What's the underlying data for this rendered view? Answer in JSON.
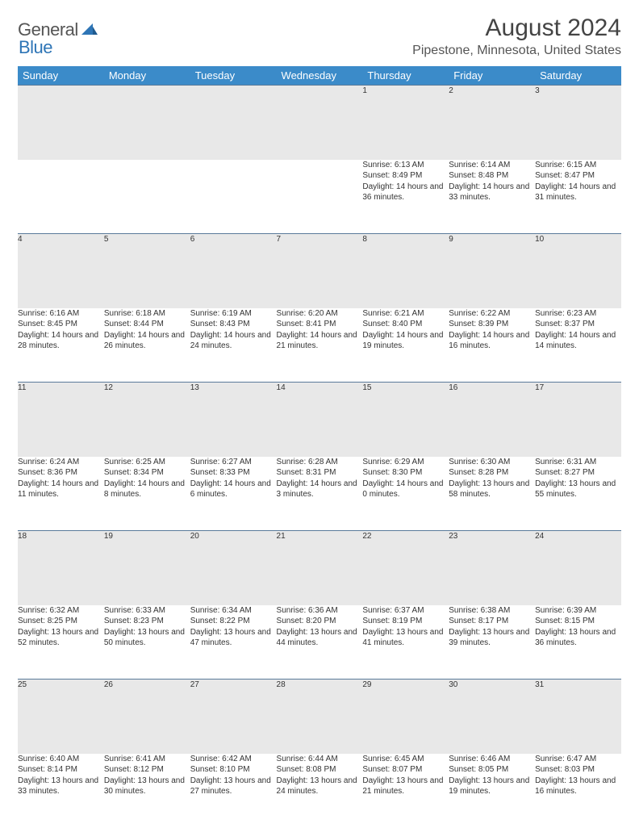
{
  "logo": {
    "text1": "General",
    "text2": "Blue"
  },
  "title": "August 2024",
  "location": "Pipestone, Minnesota, United States",
  "header_bg": "#3b8bc9",
  "daynum_bg": "#e8e8e8",
  "dayheaders": [
    "Sunday",
    "Monday",
    "Tuesday",
    "Wednesday",
    "Thursday",
    "Friday",
    "Saturday"
  ],
  "weeks": [
    [
      null,
      null,
      null,
      null,
      {
        "n": "1",
        "sr": "6:13 AM",
        "ss": "8:49 PM",
        "dl": "14 hours and 36 minutes."
      },
      {
        "n": "2",
        "sr": "6:14 AM",
        "ss": "8:48 PM",
        "dl": "14 hours and 33 minutes."
      },
      {
        "n": "3",
        "sr": "6:15 AM",
        "ss": "8:47 PM",
        "dl": "14 hours and 31 minutes."
      }
    ],
    [
      {
        "n": "4",
        "sr": "6:16 AM",
        "ss": "8:45 PM",
        "dl": "14 hours and 28 minutes."
      },
      {
        "n": "5",
        "sr": "6:18 AM",
        "ss": "8:44 PM",
        "dl": "14 hours and 26 minutes."
      },
      {
        "n": "6",
        "sr": "6:19 AM",
        "ss": "8:43 PM",
        "dl": "14 hours and 24 minutes."
      },
      {
        "n": "7",
        "sr": "6:20 AM",
        "ss": "8:41 PM",
        "dl": "14 hours and 21 minutes."
      },
      {
        "n": "8",
        "sr": "6:21 AM",
        "ss": "8:40 PM",
        "dl": "14 hours and 19 minutes."
      },
      {
        "n": "9",
        "sr": "6:22 AM",
        "ss": "8:39 PM",
        "dl": "14 hours and 16 minutes."
      },
      {
        "n": "10",
        "sr": "6:23 AM",
        "ss": "8:37 PM",
        "dl": "14 hours and 14 minutes."
      }
    ],
    [
      {
        "n": "11",
        "sr": "6:24 AM",
        "ss": "8:36 PM",
        "dl": "14 hours and 11 minutes."
      },
      {
        "n": "12",
        "sr": "6:25 AM",
        "ss": "8:34 PM",
        "dl": "14 hours and 8 minutes."
      },
      {
        "n": "13",
        "sr": "6:27 AM",
        "ss": "8:33 PM",
        "dl": "14 hours and 6 minutes."
      },
      {
        "n": "14",
        "sr": "6:28 AM",
        "ss": "8:31 PM",
        "dl": "14 hours and 3 minutes."
      },
      {
        "n": "15",
        "sr": "6:29 AM",
        "ss": "8:30 PM",
        "dl": "14 hours and 0 minutes."
      },
      {
        "n": "16",
        "sr": "6:30 AM",
        "ss": "8:28 PM",
        "dl": "13 hours and 58 minutes."
      },
      {
        "n": "17",
        "sr": "6:31 AM",
        "ss": "8:27 PM",
        "dl": "13 hours and 55 minutes."
      }
    ],
    [
      {
        "n": "18",
        "sr": "6:32 AM",
        "ss": "8:25 PM",
        "dl": "13 hours and 52 minutes."
      },
      {
        "n": "19",
        "sr": "6:33 AM",
        "ss": "8:23 PM",
        "dl": "13 hours and 50 minutes."
      },
      {
        "n": "20",
        "sr": "6:34 AM",
        "ss": "8:22 PM",
        "dl": "13 hours and 47 minutes."
      },
      {
        "n": "21",
        "sr": "6:36 AM",
        "ss": "8:20 PM",
        "dl": "13 hours and 44 minutes."
      },
      {
        "n": "22",
        "sr": "6:37 AM",
        "ss": "8:19 PM",
        "dl": "13 hours and 41 minutes."
      },
      {
        "n": "23",
        "sr": "6:38 AM",
        "ss": "8:17 PM",
        "dl": "13 hours and 39 minutes."
      },
      {
        "n": "24",
        "sr": "6:39 AM",
        "ss": "8:15 PM",
        "dl": "13 hours and 36 minutes."
      }
    ],
    [
      {
        "n": "25",
        "sr": "6:40 AM",
        "ss": "8:14 PM",
        "dl": "13 hours and 33 minutes."
      },
      {
        "n": "26",
        "sr": "6:41 AM",
        "ss": "8:12 PM",
        "dl": "13 hours and 30 minutes."
      },
      {
        "n": "27",
        "sr": "6:42 AM",
        "ss": "8:10 PM",
        "dl": "13 hours and 27 minutes."
      },
      {
        "n": "28",
        "sr": "6:44 AM",
        "ss": "8:08 PM",
        "dl": "13 hours and 24 minutes."
      },
      {
        "n": "29",
        "sr": "6:45 AM",
        "ss": "8:07 PM",
        "dl": "13 hours and 21 minutes."
      },
      {
        "n": "30",
        "sr": "6:46 AM",
        "ss": "8:05 PM",
        "dl": "13 hours and 19 minutes."
      },
      {
        "n": "31",
        "sr": "6:47 AM",
        "ss": "8:03 PM",
        "dl": "13 hours and 16 minutes."
      }
    ]
  ],
  "labels": {
    "sunrise": "Sunrise:",
    "sunset": "Sunset:",
    "daylight": "Daylight:"
  }
}
